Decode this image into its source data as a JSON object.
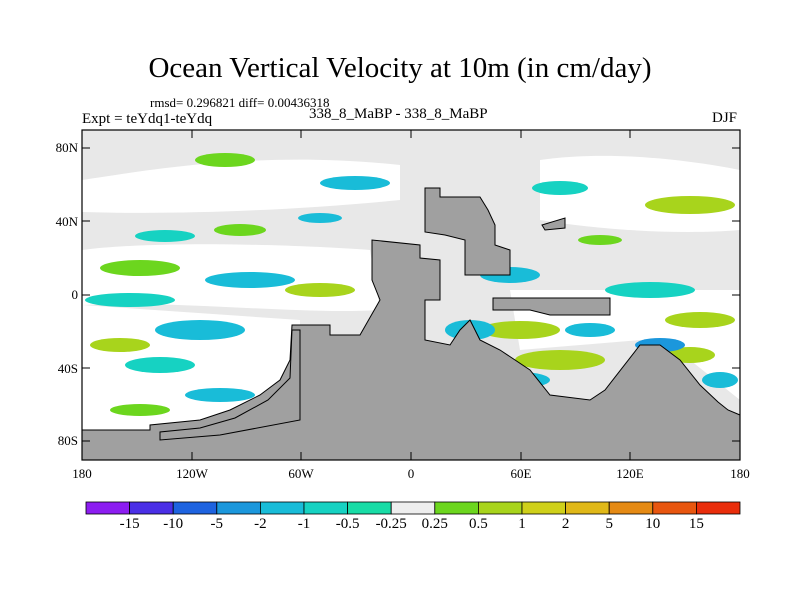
{
  "title": "Ocean Vertical Velocity at 10m (in cm/day)",
  "stats": "rmsd= 0.296821 diff= 0.00436318",
  "experiment": "Expt = teYdq1-teYdq",
  "runs": "338_8_MaBP - 338_8_MaBP",
  "season": "DJF",
  "lat_ticks": [
    "80N",
    "40N",
    "0",
    "40S",
    "80S"
  ],
  "lon_ticks": [
    "180",
    "120W",
    "60W",
    "0",
    "60E",
    "120E",
    "180"
  ],
  "colorbar": {
    "labels": [
      "-15",
      "-10",
      "-5",
      "-2",
      "-1",
      "-0.5",
      "-0.25",
      "0.25",
      "0.5",
      "1",
      "2",
      "5",
      "10",
      "15"
    ],
    "colors": [
      "#8c1df0",
      "#4a2fe6",
      "#1e63e0",
      "#1b97dc",
      "#19bcd8",
      "#16d2c2",
      "#18dca6",
      "#eeeeee",
      "#6cd61e",
      "#a8d41c",
      "#cfd01a",
      "#e0b818",
      "#e58a14",
      "#e8560f",
      "#e92d0b"
    ]
  },
  "chart_data": {
    "type": "heatmap",
    "title": "Ocean Vertical Velocity at 10m (in cm/day)",
    "variable": "vertical velocity difference",
    "units": "cm/day",
    "x_range": [
      -180,
      180
    ],
    "y_range": [
      -90,
      90
    ],
    "levels": [
      -15,
      -10,
      -5,
      -2,
      -1,
      -0.5,
      -0.25,
      0.25,
      0.5,
      1,
      2,
      5,
      10,
      15
    ],
    "land_color": "#a0a0a0",
    "background_color": "#e8e8e8"
  }
}
